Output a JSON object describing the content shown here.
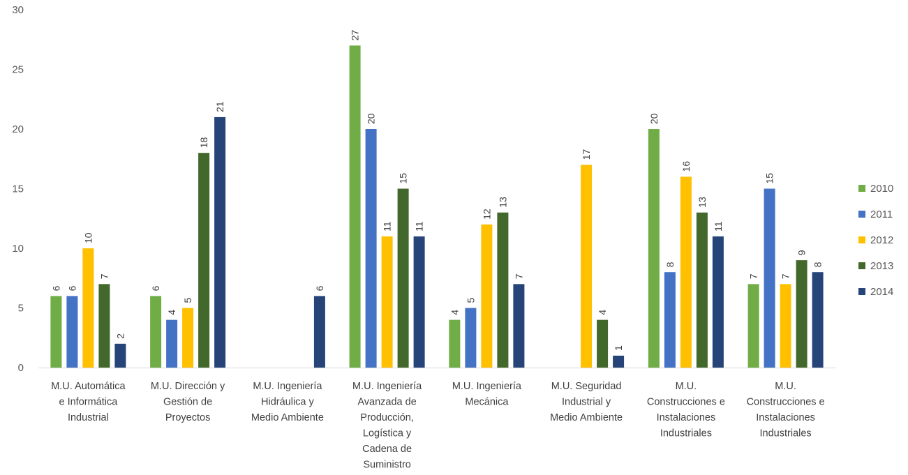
{
  "chart_data": {
    "type": "bar",
    "title": "",
    "xlabel": "",
    "ylabel": "",
    "ylim": [
      0,
      30
    ],
    "yticks": [
      0,
      5,
      10,
      15,
      20,
      25,
      30
    ],
    "grid": false,
    "legend_position": "right",
    "categories": [
      [
        "M.U. Automática",
        "e Informática",
        "Industrial"
      ],
      [
        "M.U. Dirección y",
        "Gestión de",
        "Proyectos"
      ],
      [
        "M.U. Ingeniería",
        "Hidráulica y",
        "Medio Ambiente"
      ],
      [
        "M.U. Ingeniería",
        "Avanzada de",
        "Producción,",
        "Logística y",
        "Cadena de",
        "Suministro"
      ],
      [
        "M.U. Ingeniería",
        "Mecánica"
      ],
      [
        "M.U. Seguridad",
        "Industrial y",
        "Medio Ambiente"
      ],
      [
        "M.U.",
        "Construcciones e",
        "Instalaciones",
        "Industriales"
      ],
      [
        "M.U.",
        "Construcciones e",
        "Instalaciones",
        "Industriales"
      ]
    ],
    "series": [
      {
        "name": "2010",
        "color": "#70ad47",
        "values": [
          6,
          6,
          null,
          27,
          4,
          null,
          20,
          7
        ]
      },
      {
        "name": "2011",
        "color": "#4472c4",
        "values": [
          6,
          4,
          null,
          20,
          5,
          null,
          8,
          15
        ]
      },
      {
        "name": "2012",
        "color": "#ffc000",
        "values": [
          10,
          5,
          null,
          11,
          12,
          17,
          16,
          7
        ]
      },
      {
        "name": "2013",
        "color": "#43682b",
        "values": [
          7,
          18,
          null,
          15,
          13,
          4,
          13,
          9
        ]
      },
      {
        "name": "2014",
        "color": "#264478",
        "values": [
          2,
          21,
          6,
          11,
          7,
          1,
          11,
          8
        ]
      }
    ]
  }
}
